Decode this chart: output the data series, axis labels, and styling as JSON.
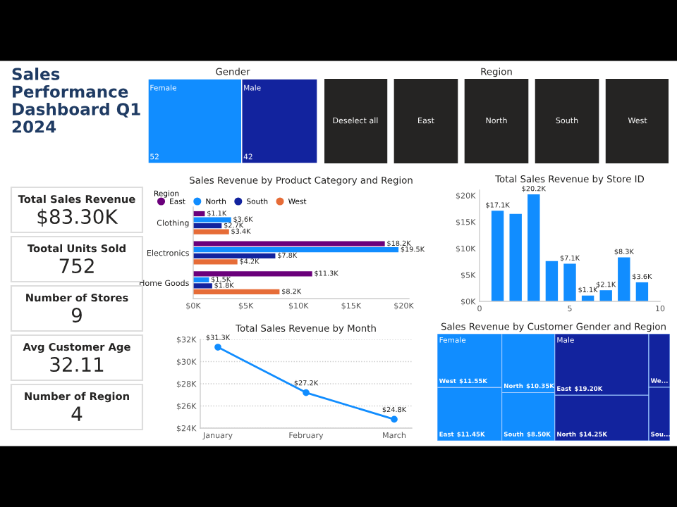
{
  "chart_data": [
    {
      "type": "other",
      "title": "Sales\nPerformance\nDashboard Q1\n2024",
      "annotations": [
        "Total Sales Revenue",
        "$83.30K",
        "Tootal Units Sold",
        "752",
        "Number of Stores",
        "9",
        "Avg Customer Age",
        "32.11",
        "Number of Region",
        "4"
      ]
    },
    {
      "type": "other",
      "title": "Gender",
      "categories": [
        "Female",
        "Male"
      ],
      "values": [
        52,
        42
      ],
      "value_labels": [
        "52",
        "42"
      ],
      "colors": [
        "#118dff",
        "#12239e"
      ]
    },
    {
      "type": "other",
      "title": "Region",
      "categories": [
        "Deselect all",
        "East",
        "North",
        "South",
        "West"
      ],
      "colors": [
        "#252423",
        "#252423",
        "#252423",
        "#252423",
        "#252423"
      ]
    },
    {
      "type": "bar",
      "orientation": "horizontal",
      "title": "Sales Revenue by Product Category and Region",
      "legend_title": "Region",
      "legend": "top left",
      "categories": [
        "Clothing",
        "Electronics",
        "Home Goods"
      ],
      "series": [
        {
          "name": "East",
          "color": "#6b007b",
          "values": [
            1.1,
            18.2,
            11.3
          ],
          "value_labels": [
            "$1.1K",
            "$18.2K",
            "$11.3K"
          ]
        },
        {
          "name": "North",
          "color": "#118dff",
          "values": [
            3.6,
            19.5,
            1.5
          ],
          "value_labels": [
            "$3.6K",
            "$19.5K",
            "$1.5K"
          ]
        },
        {
          "name": "South",
          "color": "#12239e",
          "values": [
            2.7,
            7.8,
            1.8
          ],
          "value_labels": [
            "$2.7K",
            "$7.8K",
            "$1.8K"
          ]
        },
        {
          "name": "West",
          "color": "#e66c37",
          "values": [
            3.4,
            4.2,
            8.2
          ],
          "value_labels": [
            "$3.4K",
            "$4.2K",
            "$8.2K"
          ]
        }
      ],
      "xlim": [
        0,
        20.5
      ],
      "xticks": [
        {
          "value": 0,
          "label": "$0K"
        },
        {
          "value": 5,
          "label": "$5K"
        },
        {
          "value": 10,
          "label": "$10K"
        },
        {
          "value": 15,
          "label": "$15K"
        },
        {
          "value": 20,
          "label": "$20K"
        }
      ]
    },
    {
      "type": "bar",
      "title": "Total Sales Revenue by Store ID",
      "x": [
        1,
        2,
        3,
        4,
        5,
        6,
        7,
        8,
        9
      ],
      "series": [
        {
          "color": "#118dff",
          "values": [
            17.1,
            16.5,
            20.2,
            7.6,
            7.1,
            1.1,
            2.1,
            8.3,
            3.6
          ],
          "value_labels": [
            "$17.1K",
            null,
            "$20.2K",
            null,
            "$7.1K",
            "$1.1K",
            "$2.1K",
            "$8.3K",
            "$3.6K"
          ]
        }
      ],
      "xlim": [
        0,
        10
      ],
      "xticks": [
        0,
        5,
        10
      ],
      "ylim": [
        0,
        21
      ],
      "yticks": [
        {
          "value": 0,
          "label": "$0K"
        },
        {
          "value": 5,
          "label": "$5K"
        },
        {
          "value": 10,
          "label": "$10K"
        },
        {
          "value": 15,
          "label": "$15K"
        },
        {
          "value": 20,
          "label": "$20K"
        }
      ]
    },
    {
      "type": "line",
      "title": "Total Sales Revenue by Month",
      "categories": [
        "January",
        "February",
        "March"
      ],
      "marker": "circle",
      "grid": "y",
      "series": [
        {
          "color": "#118dff",
          "values": [
            31.3,
            27.2,
            24.8
          ],
          "value_labels": [
            "$31.3K",
            "$27.2K",
            "$24.8K"
          ]
        }
      ],
      "ylim": [
        24,
        32
      ],
      "yticks": [
        {
          "value": 24,
          "label": "$24K"
        },
        {
          "value": 26,
          "label": "$26K"
        },
        {
          "value": 28,
          "label": "$28K"
        },
        {
          "value": 30,
          "label": "$30K"
        },
        {
          "value": 32,
          "label": "$32K"
        }
      ]
    },
    {
      "type": "other",
      "title": "Sales Revenue by Customer Gender and Region",
      "categories": [
        "West",
        "East",
        "North",
        "South",
        "East",
        "North",
        "We...",
        "Sou..."
      ],
      "values": [
        11.55,
        11.45,
        10.35,
        8.5,
        19.2,
        14.25,
        null,
        null
      ],
      "value_labels": [
        "$11.55K",
        "$11.45K",
        "$10.35K",
        "$8.50K",
        "$19.20K",
        "$14.25K",
        null,
        null
      ],
      "colors": [
        "#118dff",
        "#118dff",
        "#118dff",
        "#118dff",
        "#12239e",
        "#12239e",
        "#12239e",
        "#12239e"
      ],
      "annotations": [
        "Female",
        "Male"
      ]
    }
  ]
}
